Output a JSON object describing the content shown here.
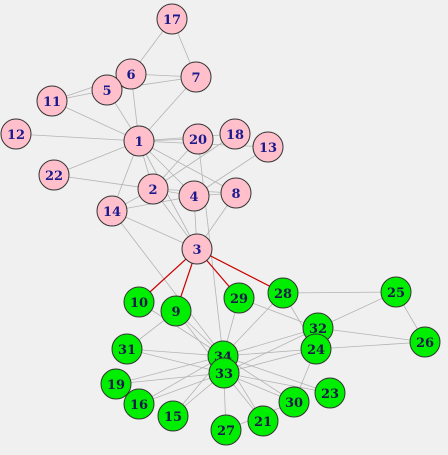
{
  "graph": {
    "colors": {
      "background": "#f0f0f0",
      "edge": "#b4b4b4",
      "bridge_edge": "#cc0000",
      "node_stroke": "#333333",
      "label": "#1a1a8c",
      "group_a": "#ffc0cb",
      "group_b": "#00ee00"
    },
    "nodes": [
      {
        "id": "17",
        "group": "a"
      },
      {
        "id": "6",
        "group": "a"
      },
      {
        "id": "7",
        "group": "a"
      },
      {
        "id": "5",
        "group": "a"
      },
      {
        "id": "11",
        "group": "a"
      },
      {
        "id": "12",
        "group": "a"
      },
      {
        "id": "1",
        "group": "a"
      },
      {
        "id": "20",
        "group": "a"
      },
      {
        "id": "18",
        "group": "a"
      },
      {
        "id": "13",
        "group": "a"
      },
      {
        "id": "22",
        "group": "a"
      },
      {
        "id": "2",
        "group": "a"
      },
      {
        "id": "4",
        "group": "a"
      },
      {
        "id": "8",
        "group": "a"
      },
      {
        "id": "14",
        "group": "a"
      },
      {
        "id": "3",
        "group": "a"
      },
      {
        "id": "10",
        "group": "b"
      },
      {
        "id": "9",
        "group": "b"
      },
      {
        "id": "29",
        "group": "b"
      },
      {
        "id": "28",
        "group": "b"
      },
      {
        "id": "25",
        "group": "b"
      },
      {
        "id": "32",
        "group": "b"
      },
      {
        "id": "24",
        "group": "b"
      },
      {
        "id": "26",
        "group": "b"
      },
      {
        "id": "31",
        "group": "b"
      },
      {
        "id": "34",
        "group": "b"
      },
      {
        "id": "33",
        "group": "b"
      },
      {
        "id": "19",
        "group": "b"
      },
      {
        "id": "16",
        "group": "b"
      },
      {
        "id": "15",
        "group": "b"
      },
      {
        "id": "27",
        "group": "b"
      },
      {
        "id": "21",
        "group": "b"
      },
      {
        "id": "30",
        "group": "b"
      },
      {
        "id": "23",
        "group": "b"
      }
    ],
    "edges": [
      [
        "1",
        "2"
      ],
      [
        "1",
        "3"
      ],
      [
        "1",
        "4"
      ],
      [
        "1",
        "5"
      ],
      [
        "1",
        "6"
      ],
      [
        "1",
        "7"
      ],
      [
        "1",
        "8"
      ],
      [
        "1",
        "11"
      ],
      [
        "1",
        "12"
      ],
      [
        "1",
        "13"
      ],
      [
        "1",
        "14"
      ],
      [
        "1",
        "18"
      ],
      [
        "1",
        "20"
      ],
      [
        "1",
        "22"
      ],
      [
        "2",
        "3"
      ],
      [
        "2",
        "4"
      ],
      [
        "2",
        "8"
      ],
      [
        "2",
        "14"
      ],
      [
        "2",
        "18"
      ],
      [
        "2",
        "20"
      ],
      [
        "2",
        "22"
      ],
      [
        "3",
        "4"
      ],
      [
        "3",
        "8"
      ],
      [
        "3",
        "14"
      ],
      [
        "4",
        "8"
      ],
      [
        "4",
        "13"
      ],
      [
        "4",
        "14"
      ],
      [
        "5",
        "7"
      ],
      [
        "5",
        "11"
      ],
      [
        "6",
        "7"
      ],
      [
        "6",
        "11"
      ],
      [
        "6",
        "17"
      ],
      [
        "7",
        "17"
      ],
      [
        "9",
        "31"
      ],
      [
        "9",
        "33"
      ],
      [
        "9",
        "34"
      ],
      [
        "10",
        "34"
      ],
      [
        "14",
        "34"
      ],
      [
        "15",
        "33"
      ],
      [
        "15",
        "34"
      ],
      [
        "16",
        "33"
      ],
      [
        "16",
        "34"
      ],
      [
        "19",
        "33"
      ],
      [
        "19",
        "34"
      ],
      [
        "20",
        "34"
      ],
      [
        "21",
        "33"
      ],
      [
        "21",
        "34"
      ],
      [
        "23",
        "33"
      ],
      [
        "23",
        "34"
      ],
      [
        "24",
        "26"
      ],
      [
        "24",
        "28"
      ],
      [
        "24",
        "30"
      ],
      [
        "24",
        "33"
      ],
      [
        "24",
        "34"
      ],
      [
        "25",
        "26"
      ],
      [
        "25",
        "28"
      ],
      [
        "25",
        "32"
      ],
      [
        "26",
        "32"
      ],
      [
        "27",
        "30"
      ],
      [
        "27",
        "34"
      ],
      [
        "28",
        "34"
      ],
      [
        "29",
        "32"
      ],
      [
        "29",
        "34"
      ],
      [
        "30",
        "33"
      ],
      [
        "30",
        "34"
      ],
      [
        "31",
        "33"
      ],
      [
        "31",
        "34"
      ],
      [
        "32",
        "33"
      ],
      [
        "32",
        "34"
      ],
      [
        "33",
        "34"
      ]
    ],
    "bridge_edges": [
      [
        "3",
        "10"
      ],
      [
        "3",
        "9"
      ],
      [
        "3",
        "29"
      ],
      [
        "3",
        "28"
      ]
    ]
  }
}
